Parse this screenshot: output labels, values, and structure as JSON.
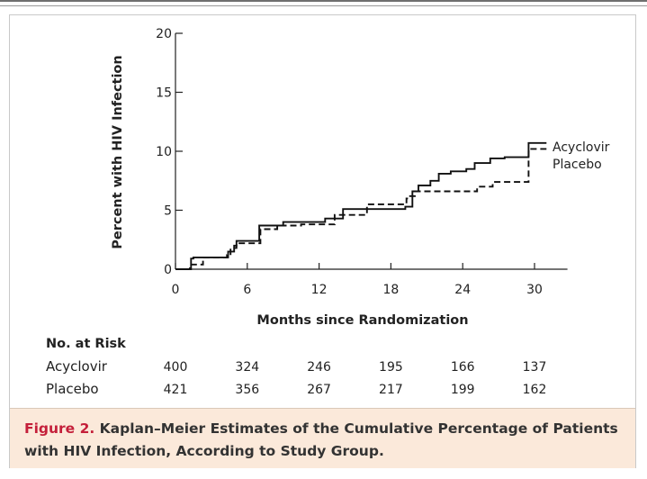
{
  "figure": {
    "number": "Figure 2.",
    "caption": "Kaplan–Meier Estimates of the Cumulative Percentage of Patients with HIV Infection, According to Study Group."
  },
  "colors": {
    "caption_background": "#fbe9da",
    "figure_number": "#c41f3a",
    "lines": "#111111"
  },
  "chart_data": {
    "type": "line",
    "step": true,
    "xlabel": "Months since Randomization",
    "ylabel": "Percent with HIV Infection",
    "xlim": [
      0,
      32
    ],
    "ylim": [
      0,
      20
    ],
    "xticks": [
      0,
      6,
      12,
      18,
      24,
      30
    ],
    "yticks": [
      0,
      5,
      10,
      15,
      20
    ],
    "grid": false,
    "series": [
      {
        "name": "Acyclovir",
        "style": "solid",
        "x": [
          0,
          1.3,
          1.5,
          3.5,
          4.4,
          4.9,
          5.1,
          6.5,
          7.0,
          8.0,
          9.0,
          10.2,
          12.5,
          14.0,
          16.0,
          17.5,
          18.5,
          19.2,
          19.8,
          20.3,
          21.3,
          22.0,
          23.0,
          24.3,
          25.0,
          26.3,
          27.5,
          29.2,
          29.5,
          31.0
        ],
        "y": [
          0,
          0.9,
          1.0,
          1.0,
          1.5,
          2.0,
          2.4,
          2.4,
          3.7,
          3.7,
          4.0,
          4.0,
          4.3,
          5.1,
          5.1,
          5.1,
          5.1,
          5.3,
          6.6,
          7.1,
          7.5,
          8.1,
          8.3,
          8.5,
          9.0,
          9.4,
          9.5,
          9.5,
          10.7,
          10.7
        ]
      },
      {
        "name": "Placebo",
        "style": "dashed",
        "x": [
          0,
          1.2,
          2.3,
          3.3,
          4.3,
          4.6,
          5.1,
          6.6,
          7.1,
          8.5,
          10.5,
          12.6,
          13.3,
          14.5,
          16.0,
          18.5,
          19.3,
          19.6,
          20.0,
          20.8,
          24.3,
          25.2,
          26.5,
          27.7,
          29.5,
          31.0
        ],
        "y": [
          0,
          0.4,
          1.0,
          1.0,
          1.2,
          1.8,
          2.2,
          2.2,
          3.4,
          3.7,
          3.8,
          3.8,
          4.6,
          4.6,
          5.5,
          5.5,
          6.0,
          6.2,
          6.6,
          6.6,
          6.6,
          7.0,
          7.4,
          7.4,
          10.2,
          10.2
        ]
      }
    ],
    "at_risk": {
      "title": "No. at Risk",
      "rows": [
        {
          "label": "Acyclovir",
          "values": [
            "400",
            "324",
            "246",
            "195",
            "166",
            "137"
          ]
        },
        {
          "label": "Placebo",
          "values": [
            "421",
            "356",
            "267",
            "217",
            "199",
            "162"
          ]
        }
      ]
    }
  }
}
